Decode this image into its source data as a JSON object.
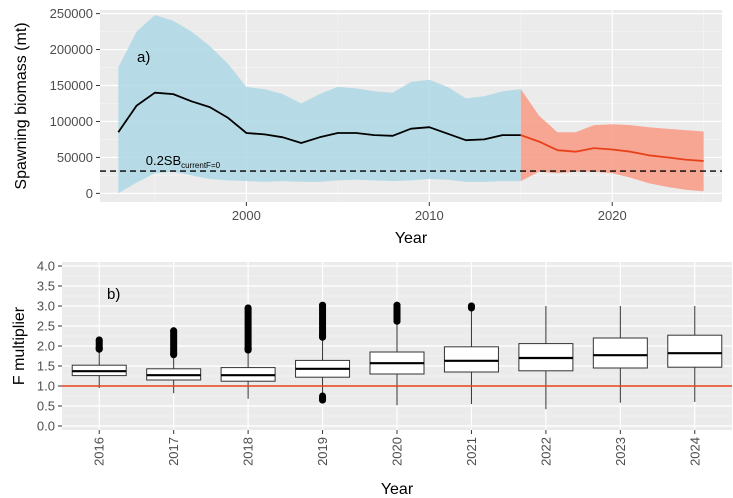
{
  "chart_data": [
    {
      "type": "line",
      "panel_label": "a)",
      "xlabel": "Year",
      "ylabel": "Spawning biomass (mt)",
      "xlim": [
        1992,
        2026
      ],
      "ylim": [
        -12000,
        255000
      ],
      "x_ticks": [
        2000,
        2010,
        2020
      ],
      "y_ticks": [
        {
          "value": 0,
          "label": "0"
        },
        {
          "value": 50000,
          "label": "50000"
        },
        {
          "value": 100000,
          "label": "100000"
        },
        {
          "value": 150000,
          "label": "150000"
        },
        {
          "value": 200000,
          "label": "200000"
        },
        {
          "value": 250000,
          "label": "250000"
        }
      ],
      "grid": true,
      "series": [
        {
          "color": "#000000",
          "band_color": "#add8e6",
          "x": [
            1993,
            1994,
            1995,
            1996,
            1997,
            1998,
            1999,
            2000,
            2001,
            2002,
            2003,
            2004,
            2005,
            2006,
            2007,
            2008,
            2009,
            2010,
            2011,
            2012,
            2013,
            2014,
            2015
          ],
          "values": [
            85000,
            122000,
            140000,
            138000,
            128000,
            120000,
            105000,
            84000,
            82000,
            78000,
            70000,
            78000,
            84000,
            84000,
            81000,
            80000,
            90000,
            92000,
            83000,
            74000,
            75000,
            81000,
            81000
          ],
          "lower": [
            0,
            15000,
            28000,
            30000,
            25000,
            20000,
            18000,
            17000,
            16000,
            17000,
            16000,
            16000,
            18000,
            19000,
            18000,
            17000,
            18000,
            20000,
            19000,
            16000,
            16000,
            17000,
            17000
          ],
          "upper": [
            175000,
            225000,
            248000,
            240000,
            225000,
            205000,
            180000,
            148000,
            145000,
            138000,
            125000,
            138000,
            148000,
            146000,
            142000,
            140000,
            155000,
            158000,
            148000,
            132000,
            135000,
            142000,
            145000
          ]
        },
        {
          "color": "#e8411a",
          "band_color": "#fa9a85",
          "x": [
            2015,
            2016,
            2017,
            2018,
            2019,
            2020,
            2021,
            2022,
            2023,
            2024,
            2025
          ],
          "values": [
            81000,
            72000,
            60000,
            58000,
            63000,
            61000,
            58000,
            53000,
            50000,
            47000,
            45000
          ],
          "lower": [
            17000,
            30000,
            28000,
            30000,
            30000,
            28000,
            22000,
            14000,
            9000,
            5000,
            3000
          ],
          "upper": [
            145000,
            108000,
            85000,
            85000,
            95000,
            96000,
            95000,
            92000,
            90000,
            88000,
            86000
          ]
        }
      ],
      "reference_line": {
        "value": 31000,
        "style": "dashed",
        "color": "#000000",
        "label": "0.2SB",
        "label_subscript": "currentF=0"
      }
    },
    {
      "type": "boxplot",
      "panel_label": "b)",
      "xlabel": "Year",
      "ylabel": "F multiplier",
      "categories": [
        "2016",
        "2017",
        "2018",
        "2019",
        "2020",
        "2021",
        "2022",
        "2023",
        "2024"
      ],
      "ylim": [
        -0.1,
        4.1
      ],
      "y_ticks": [
        "0.0",
        "0.5",
        "1.0",
        "1.5",
        "2.0",
        "2.5",
        "3.0",
        "3.5",
        "4.0"
      ],
      "grid": true,
      "reference_line": {
        "value": 1.0,
        "color": "#e8411a"
      },
      "boxes": [
        {
          "min": 0.95,
          "q1": 1.26,
          "median": 1.37,
          "q3": 1.52,
          "max": 1.92,
          "outliers": [
            1.95,
            2.15
          ]
        },
        {
          "min": 0.82,
          "q1": 1.15,
          "median": 1.27,
          "q3": 1.43,
          "max": 1.78,
          "outliers": [
            1.8,
            2.38
          ]
        },
        {
          "min": 0.68,
          "q1": 1.12,
          "median": 1.27,
          "q3": 1.46,
          "max": 1.9,
          "outliers": [
            1.95,
            2.95
          ]
        },
        {
          "min": 0.75,
          "q1": 1.22,
          "median": 1.43,
          "q3": 1.64,
          "max": 2.22,
          "outliers": [
            0.65,
            2.25,
            3.02
          ]
        },
        {
          "min": 0.52,
          "q1": 1.3,
          "median": 1.57,
          "q3": 1.85,
          "max": 2.62,
          "outliers": [
            2.65,
            3.02
          ]
        },
        {
          "min": 0.55,
          "q1": 1.35,
          "median": 1.63,
          "q3": 1.98,
          "max": 2.95,
          "outliers": [
            3.0
          ]
        },
        {
          "min": 0.42,
          "q1": 1.38,
          "median": 1.7,
          "q3": 2.06,
          "max": 3.0,
          "outliers": []
        },
        {
          "min": 0.58,
          "q1": 1.45,
          "median": 1.77,
          "q3": 2.2,
          "max": 3.0,
          "outliers": []
        },
        {
          "min": 0.6,
          "q1": 1.47,
          "median": 1.82,
          "q3": 2.27,
          "max": 3.0,
          "outliers": []
        }
      ]
    }
  ]
}
